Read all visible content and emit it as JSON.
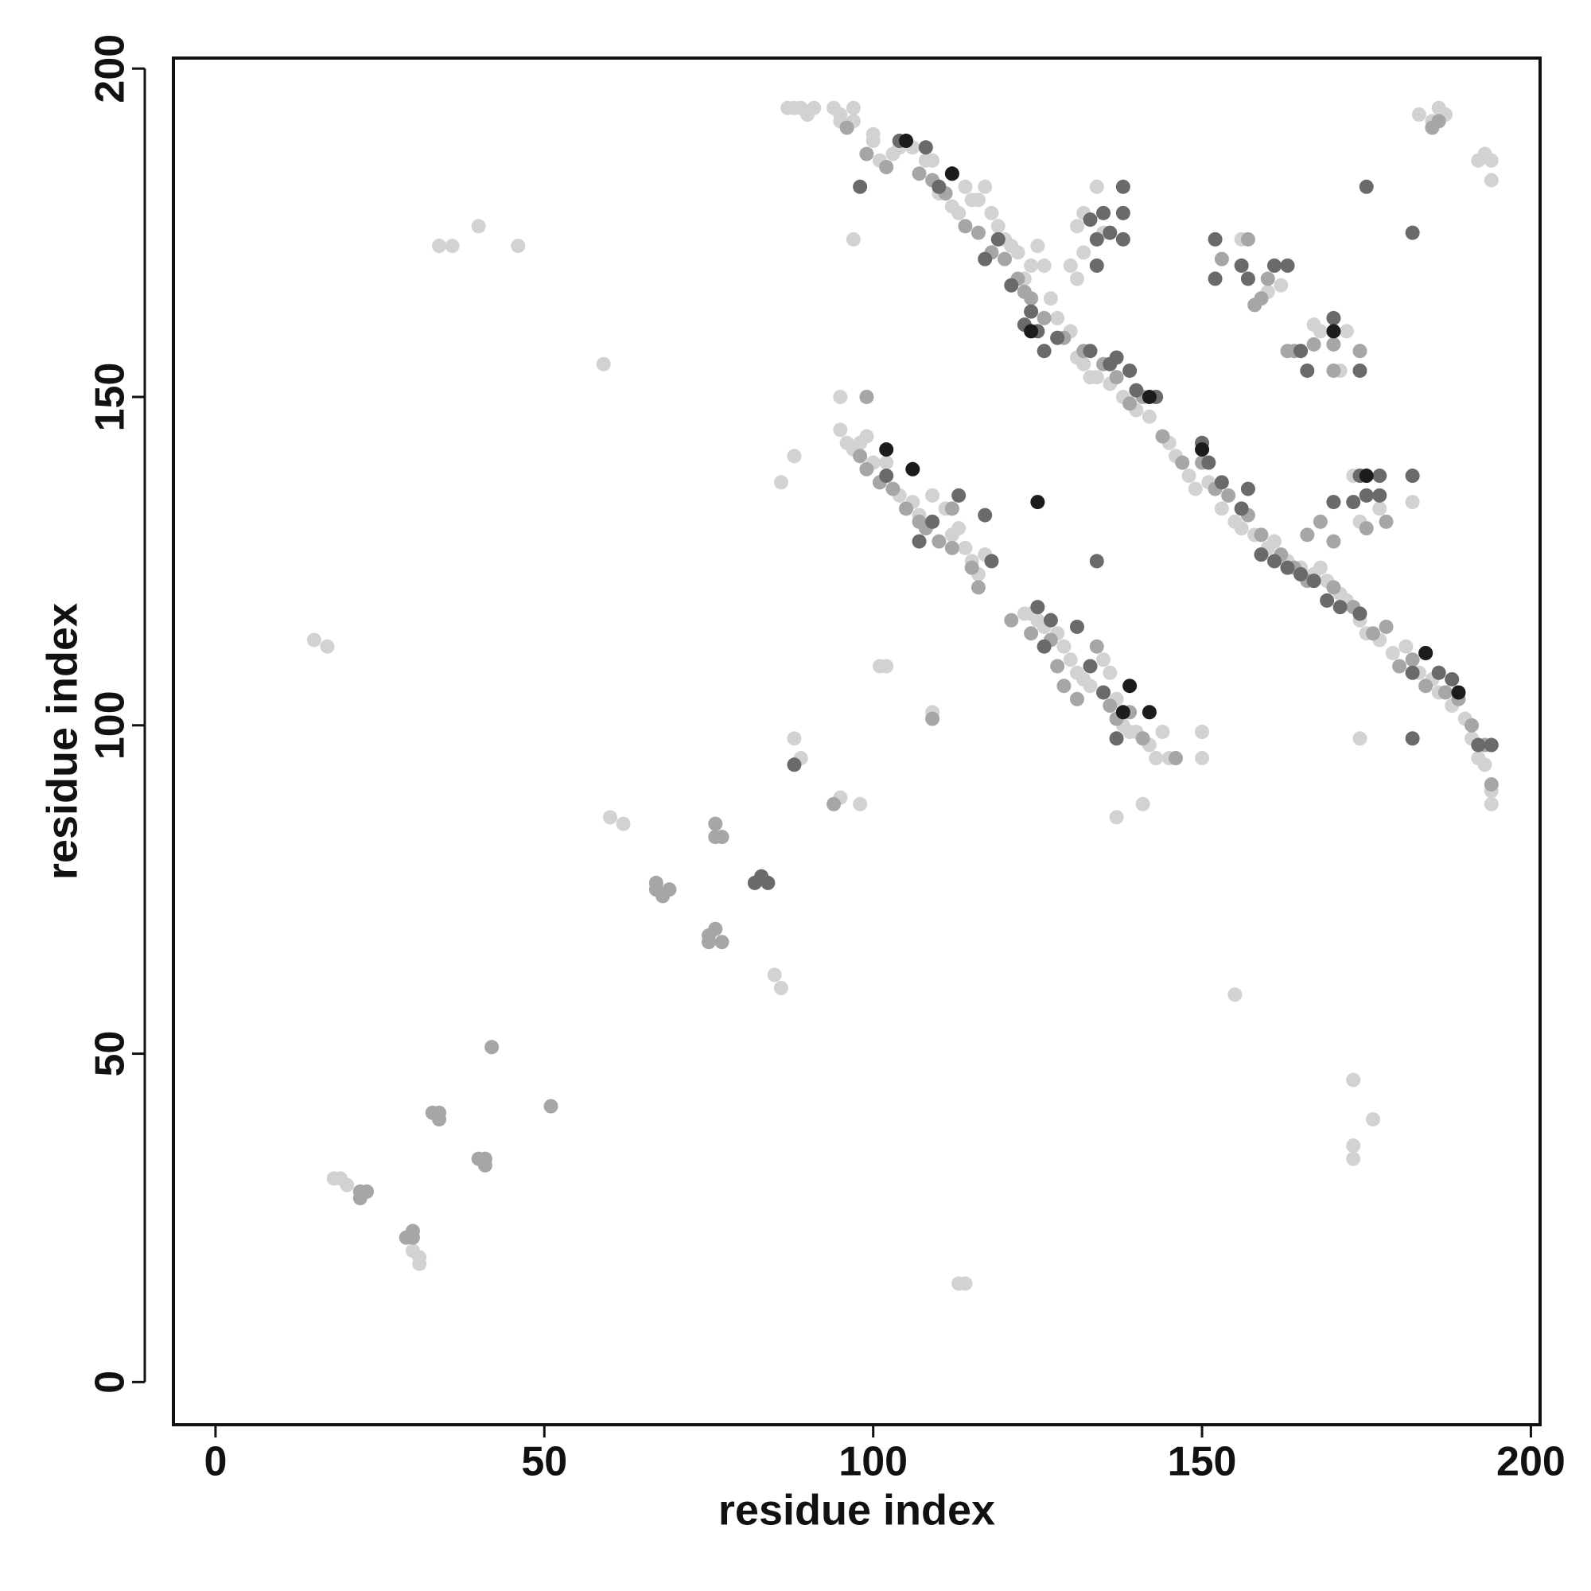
{
  "chart_data": {
    "type": "scatter",
    "x_label": "residue index",
    "y_label": "residue index",
    "xlim": [
      -6.4,
      201.4
    ],
    "ylim": [
      -6.5,
      201.6
    ],
    "xticks": [
      0,
      50,
      100,
      150,
      200
    ],
    "yticks": [
      0,
      50,
      100,
      150,
      200
    ],
    "grid": false,
    "series": [
      {
        "color": "#d2d2d2",
        "x": [
          15,
          17,
          18,
          19,
          20,
          30,
          31,
          31,
          113,
          114,
          34,
          36,
          46,
          40,
          59,
          60,
          62,
          85,
          86,
          86,
          88,
          88,
          89,
          95,
          98,
          101,
          102,
          109,
          137,
          141,
          150,
          150,
          155,
          173,
          176,
          173,
          173,
          174,
          97,
          87,
          88,
          89,
          90,
          91,
          94,
          95,
          95,
          97,
          97,
          100,
          100,
          101,
          103,
          104,
          105,
          106,
          108,
          109,
          110,
          112,
          113,
          114,
          115,
          116,
          117,
          118,
          119,
          120,
          121,
          122,
          123,
          124,
          125,
          126,
          127,
          128,
          130,
          131,
          132,
          133,
          134,
          136,
          138,
          140,
          142,
          145,
          146,
          148,
          149,
          151,
          153,
          155,
          156,
          158,
          160,
          161,
          163,
          165,
          167,
          168,
          169,
          171,
          172,
          174,
          175,
          177,
          179,
          181,
          183,
          185,
          186,
          188,
          190,
          191,
          192,
          193,
          194,
          194,
          95,
          95,
          96,
          97,
          98,
          99,
          100,
          102,
          104,
          106,
          107,
          109,
          111,
          112,
          113,
          114,
          115,
          116,
          117,
          123,
          124,
          125,
          126,
          128,
          129,
          130,
          131,
          132,
          133,
          135,
          136,
          137,
          138,
          139,
          140,
          142,
          143,
          144,
          145,
          131,
          132,
          134,
          130,
          131,
          132,
          135,
          156,
          160,
          162,
          168,
          171,
          172,
          167,
          174,
          177,
          182,
          173,
          183,
          185,
          186,
          187,
          192,
          193,
          194,
          194
        ],
        "values": [
          113,
          112,
          31,
          31,
          30,
          20,
          19,
          18,
          15,
          15,
          173,
          173,
          173,
          176,
          155,
          86,
          85,
          62,
          60,
          137,
          141,
          98,
          95,
          89,
          88,
          109,
          109,
          102,
          86,
          88,
          99,
          95,
          59,
          46,
          40,
          36,
          34,
          98,
          174,
          194,
          194,
          194,
          193,
          194,
          194,
          193,
          192,
          194,
          192,
          190,
          189,
          186,
          187,
          188,
          189,
          188,
          186,
          186,
          181,
          179,
          178,
          182,
          180,
          180,
          182,
          178,
          176,
          174,
          173,
          172,
          168,
          170,
          173,
          170,
          165,
          162,
          160,
          156,
          155,
          153,
          153,
          152,
          150,
          148,
          147,
          143,
          141,
          138,
          136,
          137,
          133,
          131,
          130,
          129,
          127,
          128,
          125,
          124,
          123,
          124,
          122,
          120,
          119,
          116,
          114,
          113,
          111,
          112,
          108,
          107,
          105,
          103,
          101,
          98,
          95,
          94,
          90,
          88,
          150,
          145,
          143,
          142,
          143,
          144,
          140,
          140,
          135,
          134,
          132,
          135,
          133,
          129,
          130,
          127,
          125,
          123,
          126,
          117,
          117,
          116,
          115,
          114,
          112,
          110,
          108,
          107,
          106,
          110,
          108,
          104,
          100,
          99,
          99,
          97,
          95,
          99,
          95,
          176,
          178,
          182,
          170,
          168,
          172,
          175,
          174,
          166,
          167,
          160,
          154,
          160,
          161,
          131,
          133,
          134,
          138,
          193,
          192,
          194,
          193,
          186,
          187,
          186,
          183
        ]
      },
      {
        "color": "#a6a6a6",
        "x": [
          22,
          23,
          22,
          29,
          30,
          30,
          33,
          34,
          34,
          40,
          41,
          41,
          42,
          51,
          67,
          67,
          68,
          69,
          75,
          76,
          75,
          77,
          76,
          76,
          77,
          109,
          94,
          96,
          99,
          102,
          107,
          109,
          111,
          114,
          116,
          118,
          120,
          122,
          123,
          124,
          126,
          129,
          132,
          135,
          137,
          139,
          141,
          144,
          147,
          150,
          152,
          154,
          157,
          159,
          162,
          164,
          166,
          170,
          173,
          176,
          178,
          180,
          182,
          184,
          187,
          189,
          191,
          193,
          194,
          98,
          99,
          101,
          103,
          105,
          107,
          110,
          112,
          115,
          116,
          121,
          124,
          127,
          128,
          129,
          131,
          134,
          136,
          137,
          139,
          141,
          146,
          99,
          108,
          112,
          153,
          158,
          159,
          157,
          160,
          163,
          164,
          167,
          170,
          170,
          174,
          168,
          175,
          178,
          170,
          166,
          185,
          186
        ],
        "values": [
          29,
          29,
          28,
          22,
          23,
          22,
          41,
          41,
          40,
          34,
          34,
          33,
          51,
          42,
          76,
          75,
          74,
          75,
          68,
          69,
          67,
          67,
          85,
          83,
          83,
          101,
          88,
          191,
          187,
          185,
          184,
          183,
          181,
          176,
          175,
          172,
          171,
          168,
          166,
          165,
          162,
          159,
          157,
          155,
          153,
          149,
          150,
          144,
          140,
          140,
          136,
          135,
          132,
          129,
          126,
          124,
          122,
          121,
          118,
          114,
          115,
          109,
          110,
          106,
          105,
          104,
          100,
          97,
          91,
          141,
          139,
          137,
          136,
          133,
          131,
          128,
          127,
          124,
          121,
          116,
          114,
          113,
          109,
          106,
          104,
          112,
          103,
          101,
          102,
          98,
          95,
          150,
          130,
          133,
          171,
          164,
          165,
          174,
          168,
          157,
          157,
          158,
          158,
          154,
          157,
          131,
          130,
          131,
          128,
          129,
          191,
          192
        ]
      },
      {
        "color": "#6a6a6a",
        "x": [
          88,
          82,
          83,
          84,
          182,
          98,
          104,
          108,
          110,
          112,
          117,
          119,
          121,
          123,
          124,
          125,
          126,
          128,
          133,
          136,
          137,
          139,
          140,
          143,
          150,
          151,
          153,
          156,
          157,
          159,
          161,
          163,
          165,
          167,
          169,
          171,
          174,
          182,
          184,
          186,
          188,
          192,
          194,
          102,
          107,
          109,
          113,
          117,
          118,
          126,
          127,
          131,
          133,
          135,
          137,
          125,
          133,
          134,
          135,
          138,
          138,
          134,
          138,
          136,
          152,
          156,
          157,
          161,
          163,
          152,
          166,
          170,
          174,
          165,
          174,
          175,
          177,
          177,
          182,
          170,
          173,
          175,
          182,
          134
        ],
        "values": [
          94,
          76,
          77,
          76,
          98,
          182,
          189,
          188,
          182,
          184,
          171,
          174,
          167,
          161,
          163,
          160,
          157,
          159,
          157,
          155,
          156,
          154,
          151,
          150,
          143,
          140,
          137,
          133,
          136,
          126,
          125,
          124,
          123,
          122,
          119,
          118,
          117,
          108,
          111,
          108,
          107,
          97,
          97,
          138,
          128,
          131,
          135,
          132,
          125,
          112,
          116,
          115,
          109,
          105,
          98,
          118,
          177,
          174,
          178,
          182,
          178,
          170,
          174,
          175,
          174,
          170,
          168,
          170,
          170,
          168,
          154,
          162,
          154,
          157,
          138,
          135,
          138,
          135,
          138,
          134,
          134,
          182,
          175,
          125
        ]
      },
      {
        "color": "#1c1c1c",
        "x": [
          105,
          112,
          124,
          142,
          150,
          184,
          189,
          102,
          106,
          139,
          142,
          138,
          170,
          175,
          125
        ],
        "values": [
          189,
          184,
          160,
          150,
          142,
          111,
          105,
          142,
          139,
          106,
          102,
          102,
          160,
          138,
          134
        ]
      }
    ]
  }
}
